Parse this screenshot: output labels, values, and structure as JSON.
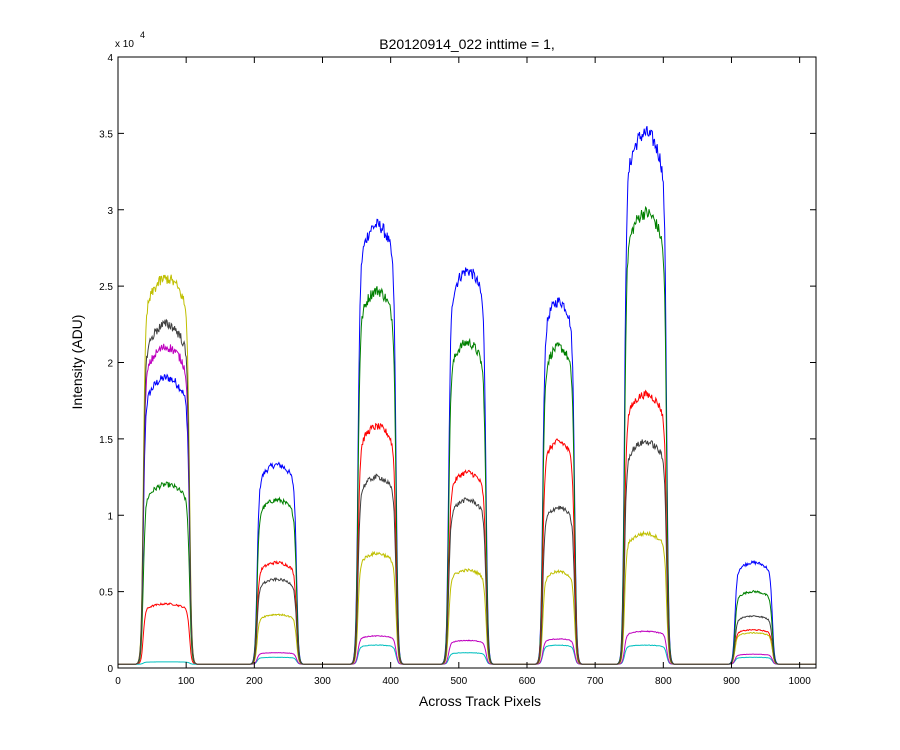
{
  "chart_data": {
    "type": "line",
    "title": "B20120914_022 inttime = 1,",
    "xlabel": "Across Track Pixels",
    "ylabel": "Intensity (ADU)",
    "y_multiplier_label": "x 10",
    "y_multiplier_exponent": "4",
    "xlim": [
      0,
      1024
    ],
    "ylim": [
      0,
      40000
    ],
    "xticks": [
      0,
      100,
      200,
      300,
      400,
      500,
      600,
      700,
      800,
      900,
      1000
    ],
    "xtick_labels": [
      "0",
      "100",
      "200",
      "300",
      "400",
      "500",
      "600",
      "700",
      "800",
      "900",
      "1000"
    ],
    "yticks": [
      0,
      5000,
      10000,
      15000,
      20000,
      25000,
      30000,
      35000,
      40000
    ],
    "ytick_labels": [
      "0",
      "0.5",
      "1",
      "1.5",
      "2",
      "2.5",
      "3",
      "3.5",
      "4"
    ],
    "grid": false,
    "legend": null,
    "baseline": 250,
    "bands": [
      {
        "start": 37,
        "end": 105
      },
      {
        "start": 204,
        "end": 262
      },
      {
        "start": 352,
        "end": 408
      },
      {
        "start": 485,
        "end": 540
      },
      {
        "start": 623,
        "end": 670
      },
      {
        "start": 743,
        "end": 805
      },
      {
        "start": 905,
        "end": 960
      }
    ],
    "series": [
      {
        "color": "#0000ff",
        "peaks": [
          19000,
          13300,
          29000,
          26000,
          24000,
          35000,
          6900
        ]
      },
      {
        "color": "#008000",
        "peaks": [
          12000,
          11000,
          24700,
          21300,
          21000,
          29800,
          5000
        ]
      },
      {
        "color": "#ff0000",
        "peaks": [
          4200,
          6900,
          15800,
          12800,
          14800,
          17900,
          2500
        ]
      },
      {
        "color": "#00bfbf",
        "peaks": [
          400,
          700,
          1500,
          1000,
          1500,
          1500,
          700
        ]
      },
      {
        "color": "#bf00bf",
        "peaks": [
          21000,
          1000,
          2100,
          1800,
          1900,
          2400,
          900
        ]
      },
      {
        "color": "#bfbf00",
        "peaks": [
          25500,
          3500,
          7500,
          6400,
          6300,
          8800,
          2300
        ]
      },
      {
        "color": "#404040",
        "peaks": [
          22500,
          5800,
          12500,
          11000,
          10500,
          14800,
          3400
        ]
      }
    ]
  }
}
